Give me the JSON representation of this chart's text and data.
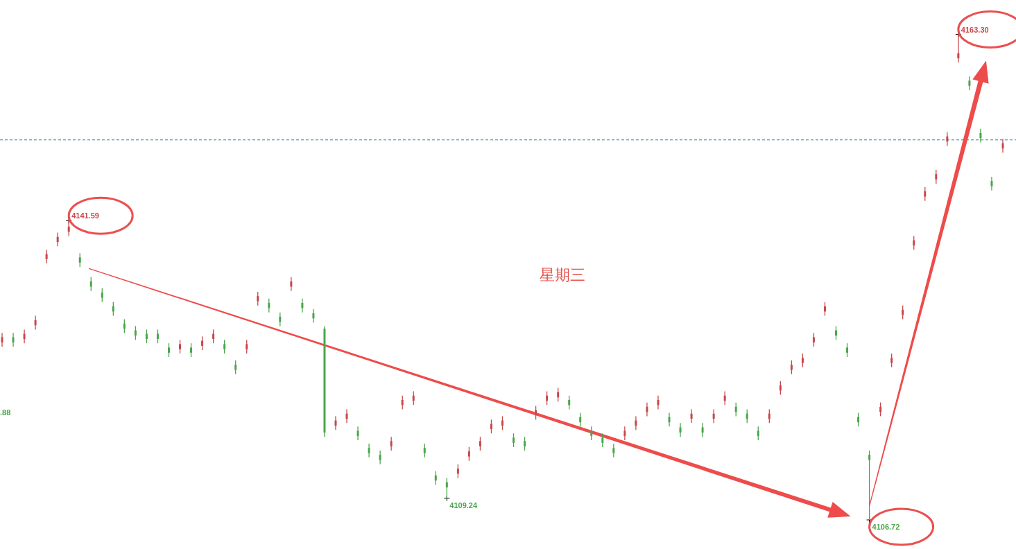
{
  "chart_data": {
    "type": "candlestick",
    "categories": [
      null,
      null,
      null,
      null,
      null,
      null,
      null,
      null,
      null,
      null,
      null,
      null,
      null,
      null,
      null,
      null,
      null,
      null,
      null,
      null,
      null,
      null,
      null,
      null,
      null,
      null,
      null,
      null,
      null,
      null,
      null,
      null,
      null,
      null,
      null,
      null,
      null,
      null,
      null,
      null,
      null,
      null,
      null,
      null,
      null,
      null,
      null,
      null,
      null,
      null,
      null,
      null,
      null,
      null,
      null,
      null,
      null,
      null,
      null,
      null,
      null,
      null,
      null,
      null,
      null,
      null,
      null,
      null,
      null,
      null,
      null,
      null,
      null,
      null,
      null,
      null,
      null,
      null,
      null,
      null,
      null,
      null,
      null,
      null,
      null,
      null,
      null,
      null,
      null,
      null,
      null
    ],
    "ohlc": [
      [
        4127.4,
        4128.5,
        4126.9,
        4128.0
      ],
      [
        4128.0,
        4128.5,
        4126.9,
        4127.4
      ],
      [
        4127.8,
        4128.9,
        4127.3,
        4128.4
      ],
      [
        4129.4,
        4130.5,
        4128.9,
        4130.0
      ],
      [
        4137.1,
        4138.2,
        4136.6,
        4137.7
      ],
      [
        4139.1,
        4140.2,
        4138.6,
        4139.7
      ],
      [
        4140.3,
        4141.59,
        4139.8,
        4140.9
      ],
      [
        4137.3,
        4137.8,
        4136.2,
        4136.7
      ],
      [
        4134.5,
        4135.0,
        4133.4,
        4133.9
      ],
      [
        4133.2,
        4133.7,
        4132.1,
        4132.6
      ],
      [
        4131.6,
        4132.1,
        4130.5,
        4131.0
      ],
      [
        4129.6,
        4130.1,
        4128.5,
        4129.0
      ],
      [
        4128.8,
        4129.3,
        4127.7,
        4128.2
      ],
      [
        4128.4,
        4128.9,
        4127.3,
        4127.8
      ],
      [
        4128.4,
        4128.9,
        4127.3,
        4127.8
      ],
      [
        4126.8,
        4127.3,
        4125.7,
        4126.2
      ],
      [
        4126.6,
        4127.7,
        4126.1,
        4127.2
      ],
      [
        4126.8,
        4127.3,
        4125.7,
        4126.2
      ],
      [
        4127.0,
        4128.1,
        4126.5,
        4127.6
      ],
      [
        4127.8,
        4128.9,
        4127.3,
        4128.4
      ],
      [
        4127.2,
        4127.7,
        4126.1,
        4126.6
      ],
      [
        4124.8,
        4125.3,
        4123.7,
        4124.2
      ],
      [
        4126.6,
        4127.7,
        4126.1,
        4127.2
      ],
      [
        4132.2,
        4133.3,
        4131.7,
        4132.8
      ],
      [
        4132.0,
        4132.5,
        4130.9,
        4131.4
      ],
      [
        4130.4,
        4130.9,
        4129.3,
        4129.8
      ],
      [
        4133.9,
        4135.0,
        4133.4,
        4134.5
      ],
      [
        4132.0,
        4132.5,
        4130.9,
        4131.4
      ],
      [
        4130.8,
        4131.3,
        4129.7,
        4130.2
      ],
      [
        4129.0,
        4129.3,
        4116.4,
        4116.9
      ],
      [
        4117.7,
        4118.8,
        4117.2,
        4118.3
      ],
      [
        4118.5,
        4119.6,
        4118.0,
        4119.1
      ],
      [
        4117.1,
        4117.6,
        4116.0,
        4116.5
      ],
      [
        4115.1,
        4115.6,
        4114.0,
        4114.5
      ],
      [
        4114.3,
        4114.8,
        4113.2,
        4113.7
      ],
      [
        4115.3,
        4116.4,
        4114.8,
        4115.9
      ],
      [
        4120.1,
        4121.2,
        4119.6,
        4120.7
      ],
      [
        4120.6,
        4121.7,
        4120.1,
        4121.2
      ],
      [
        4115.1,
        4115.6,
        4114.0,
        4114.5
      ],
      [
        4111.9,
        4112.4,
        4110.8,
        4111.3
      ],
      [
        4111.1,
        4111.6,
        4109.24,
        4110.5
      ],
      [
        4112.1,
        4113.2,
        4111.6,
        4112.7
      ],
      [
        4114.1,
        4115.2,
        4113.6,
        4114.7
      ],
      [
        4115.3,
        4116.4,
        4114.8,
        4115.9
      ],
      [
        4117.3,
        4118.4,
        4116.8,
        4117.9
      ],
      [
        4117.7,
        4118.8,
        4117.2,
        4118.3
      ],
      [
        4116.3,
        4116.8,
        4115.2,
        4115.7
      ],
      [
        4115.9,
        4116.4,
        4114.8,
        4115.3
      ],
      [
        4118.9,
        4120.0,
        4118.4,
        4119.5
      ],
      [
        4120.6,
        4121.7,
        4120.1,
        4121.2
      ],
      [
        4121.0,
        4122.1,
        4120.5,
        4121.6
      ],
      [
        4120.7,
        4121.2,
        4119.6,
        4120.1
      ],
      [
        4118.7,
        4119.2,
        4117.6,
        4118.1
      ],
      [
        4117.1,
        4117.6,
        4116.0,
        4116.5
      ],
      [
        4116.3,
        4116.8,
        4115.2,
        4115.7
      ],
      [
        4115.1,
        4115.6,
        4114.0,
        4114.5
      ],
      [
        4116.5,
        4117.6,
        4116.0,
        4117.1
      ],
      [
        4117.7,
        4118.8,
        4117.2,
        4118.3
      ],
      [
        4119.3,
        4120.4,
        4118.8,
        4119.9
      ],
      [
        4120.1,
        4121.2,
        4119.6,
        4120.7
      ],
      [
        4118.7,
        4119.2,
        4117.6,
        4118.1
      ],
      [
        4117.5,
        4118.0,
        4116.4,
        4116.9
      ],
      [
        4118.5,
        4119.6,
        4118.0,
        4119.1
      ],
      [
        4117.5,
        4118.0,
        4116.4,
        4116.9
      ],
      [
        4118.5,
        4119.6,
        4118.0,
        4119.1
      ],
      [
        4120.6,
        4121.7,
        4120.1,
        4121.2
      ],
      [
        4119.9,
        4120.4,
        4118.8,
        4119.3
      ],
      [
        4119.1,
        4119.6,
        4118.0,
        4118.5
      ],
      [
        4117.1,
        4117.6,
        4116.0,
        4116.5
      ],
      [
        4118.5,
        4119.6,
        4118.0,
        4119.1
      ],
      [
        4121.8,
        4122.9,
        4121.3,
        4122.4
      ],
      [
        4124.2,
        4125.3,
        4123.7,
        4124.8
      ],
      [
        4125.0,
        4126.1,
        4124.5,
        4125.6
      ],
      [
        4127.4,
        4128.5,
        4126.9,
        4128.0
      ],
      [
        4131.0,
        4132.1,
        4130.5,
        4131.6
      ],
      [
        4128.8,
        4129.3,
        4127.7,
        4128.2
      ],
      [
        4126.8,
        4127.3,
        4125.7,
        4126.2
      ],
      [
        4118.7,
        4119.2,
        4117.6,
        4118.1
      ],
      [
        4114.3,
        4114.8,
        4106.72,
        4113.7
      ],
      [
        4119.3,
        4120.4,
        4118.8,
        4119.9
      ],
      [
        4125.0,
        4126.1,
        4124.5,
        4125.6
      ],
      [
        4130.6,
        4131.7,
        4130.1,
        4131.2
      ],
      [
        4138.7,
        4139.8,
        4138.2,
        4139.3
      ],
      [
        4144.4,
        4145.5,
        4143.9,
        4145.0
      ],
      [
        4146.4,
        4147.5,
        4145.9,
        4147.0
      ],
      [
        4150.8,
        4151.9,
        4150.3,
        4151.4
      ],
      [
        4160.5,
        4163.3,
        4160.0,
        4161.1
      ],
      [
        4157.9,
        4158.4,
        4156.8,
        4157.3
      ],
      [
        4151.8,
        4152.3,
        4150.7,
        4151.2
      ],
      [
        4146.2,
        4146.7,
        4145.1,
        4145.6
      ],
      [
        4150.0,
        4151.1,
        4149.5,
        4150.6
      ]
    ],
    "colors": [
      "#c8474a",
      "#4aa64a",
      "#c8474a",
      "#c8474a",
      "#c8474a",
      "#c8474a",
      "#c8474a",
      "#4aa64a",
      "#4aa64a",
      "#4aa64a",
      "#4aa64a",
      "#4aa64a",
      "#4aa64a",
      "#4aa64a",
      "#4aa64a",
      "#4aa64a",
      "#c8474a",
      "#4aa64a",
      "#c8474a",
      "#c8474a",
      "#4aa64a",
      "#4aa64a",
      "#c8474a",
      "#c8474a",
      "#4aa64a",
      "#4aa64a",
      "#c8474a",
      "#4aa64a",
      "#4aa64a",
      "#4aa64a",
      "#c8474a",
      "#c8474a",
      "#4aa64a",
      "#4aa64a",
      "#4aa64a",
      "#c8474a",
      "#c8474a",
      "#c8474a",
      "#4aa64a",
      "#4aa64a",
      "#4aa64a",
      "#c8474a",
      "#c8474a",
      "#c8474a",
      "#c8474a",
      "#c8474a",
      "#4aa64a",
      "#4aa64a",
      "#c8474a",
      "#c8474a",
      "#c8474a",
      "#4aa64a",
      "#4aa64a",
      "#4aa64a",
      "#4aa64a",
      "#4aa64a",
      "#c8474a",
      "#c8474a",
      "#c8474a",
      "#c8474a",
      "#4aa64a",
      "#4aa64a",
      "#c8474a",
      "#4aa64a",
      "#c8474a",
      "#c8474a",
      "#4aa64a",
      "#4aa64a",
      "#4aa64a",
      "#c8474a",
      "#c8474a",
      "#c8474a",
      "#c8474a",
      "#c8474a",
      "#c8474a",
      "#4aa64a",
      "#4aa64a",
      "#4aa64a",
      "#4aa64a",
      "#c8474a",
      "#c8474a",
      "#c8474a",
      "#c8474a",
      "#c8474a",
      "#c8474a",
      "#c8474a",
      "#c8474a",
      "#4aa64a",
      "#4aa64a",
      "#4aa64a",
      "#c8474a"
    ],
    "ref_lines": [
      {
        "axis": "y",
        "value": 4151.0,
        "color": "#2a8a9a",
        "line_style": "dashed"
      }
    ],
    "annotations": [
      "4141.59",
      "4109.24",
      "4106.72",
      "4163.30",
      ".88",
      "星期三"
    ]
  }
}
